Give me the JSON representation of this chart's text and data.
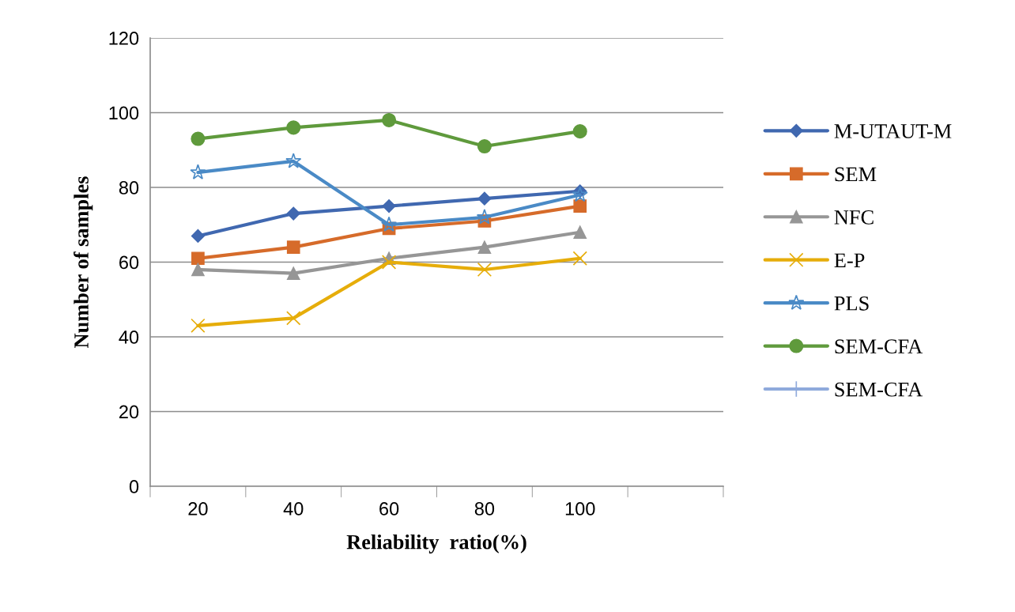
{
  "chart_data": {
    "type": "line",
    "xlabel": "Reliability  ratio(%)",
    "ylabel": "Number of samples",
    "categories": [
      "20",
      "40",
      "60",
      "80",
      "100",
      null
    ],
    "ylim": [
      0,
      120
    ],
    "yticks": [
      0,
      20,
      40,
      60,
      80,
      100,
      120
    ],
    "grid": "y",
    "legend": "right",
    "line_style": "solid",
    "series": [
      {
        "name": "M-UTAUT-M",
        "color": "#4068b0",
        "marker": "diamond",
        "values": [
          67,
          73,
          75,
          77,
          79,
          null
        ]
      },
      {
        "name": "SEM",
        "color": "#d66b2a",
        "marker": "square",
        "values": [
          61,
          64,
          69,
          71,
          75,
          null
        ]
      },
      {
        "name": "NFC",
        "color": "#969696",
        "marker": "triangle",
        "values": [
          58,
          57,
          61,
          64,
          68,
          null
        ]
      },
      {
        "name": "E-P",
        "color": "#e6ad0a",
        "marker": "cross",
        "values": [
          43,
          45,
          60,
          58,
          61,
          null
        ]
      },
      {
        "name": "PLS",
        "color": "#4a8ac6",
        "marker": "star",
        "values": [
          84,
          87,
          70,
          72,
          78,
          null
        ]
      },
      {
        "name": "SEM-CFA",
        "color": "#5f9a3c",
        "marker": "circle",
        "values": [
          93,
          96,
          98,
          91,
          95,
          null
        ]
      },
      {
        "name": "SEM-CFA",
        "color": "#8faadc",
        "marker": "plus",
        "values": [
          null,
          null,
          null,
          null,
          null,
          null
        ]
      }
    ]
  }
}
